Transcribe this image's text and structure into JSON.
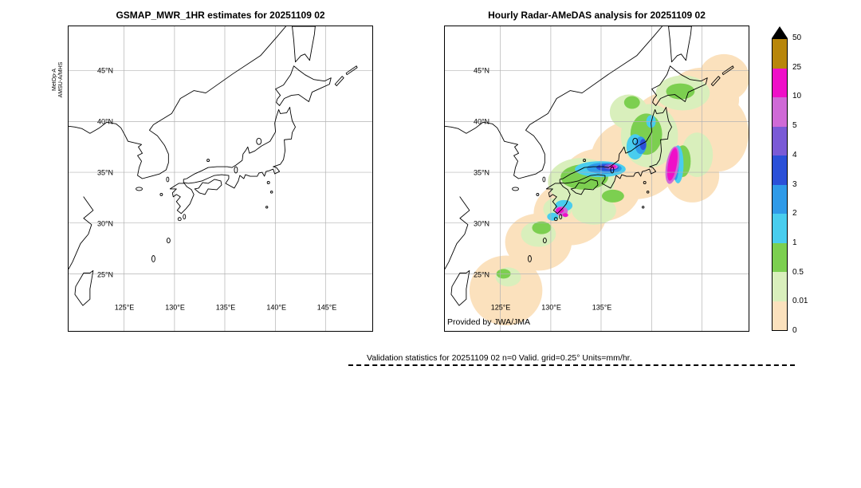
{
  "panels": [
    {
      "id": "gsmap",
      "title": "GSMAP_MWR_1HR estimates for 20251109 02",
      "side_label_lines": [
        "MetOp-A",
        "AMSU-A/MHS"
      ],
      "lat_ticks": [
        "45°N",
        "40°N",
        "35°N",
        "30°N",
        "25°N"
      ],
      "lon_ticks": [
        "125°E",
        "130°E",
        "135°E",
        "140°E",
        "145°E"
      ]
    },
    {
      "id": "radar",
      "title": "Hourly Radar-AMeDAS analysis for 20251109 02",
      "credit": "Provided by JWA/JMA",
      "lat_ticks": [
        "45°N",
        "40°N",
        "35°N",
        "30°N",
        "25°N"
      ],
      "lon_ticks": [
        "125°E",
        "130°E",
        "135°E"
      ]
    }
  ],
  "colorbar": {
    "tick_labels": [
      "50",
      "25",
      "10",
      "5",
      "4",
      "3",
      "2",
      "1",
      "0.5",
      "0.01",
      "0"
    ],
    "segment_colors_top_to_bottom": [
      "#b8860b",
      "#ef0fc8",
      "#cf6ad6",
      "#7a5ad6",
      "#2b50d8",
      "#2f9ae8",
      "#49cdee",
      "#7ccf50",
      "#d9efbc",
      "#fbe1bd"
    ],
    "over_max_marker_color": "#000000"
  },
  "footer": {
    "text": "Validation statistics for 20251109 02  n=0 Valid. grid=0.25° Units=mm/hr."
  },
  "chart_data": {
    "type": "heatmap",
    "subtype": "geographic-precipitation-comparison",
    "units": "mm/hr",
    "grid_resolution_deg": 0.25,
    "valid_datetime": "20251109 02",
    "n_valid": 0,
    "levels_mm_per_hr": [
      0,
      0.01,
      0.5,
      1,
      2,
      3,
      4,
      5,
      10,
      25,
      50
    ],
    "level_colors_low_to_high": [
      "#fbe1bd",
      "#d9efbc",
      "#7ccf50",
      "#49cdee",
      "#2f9ae8",
      "#2b50d8",
      "#7a5ad6",
      "#cf6ad6",
      "#ef0fc8",
      "#b8860b"
    ],
    "over_max_color": "#000000",
    "panels": [
      {
        "title": "GSMAP_MWR_1HR estimates for 20251109 02",
        "sensor": "MetOp-A AMSU-A/MHS",
        "lat_ticks_deg_N": [
          45,
          40,
          35,
          30,
          25
        ],
        "lon_ticks_deg_E": [
          125,
          130,
          135,
          140,
          145
        ],
        "shaded_data": "no precipitation shading visible (empty coastline map of Japan)"
      },
      {
        "title": "Hourly Radar-AMeDAS analysis for 20251109 02",
        "credit": "Provided by JWA/JMA",
        "lat_ticks_deg_N": [
          45,
          40,
          35,
          30,
          25
        ],
        "lon_ticks_deg_E": [
          125,
          130,
          135
        ],
        "shaded_data": "broad SW-NE precipitation band from the Ryukyu islands across Kyushu, Shikoku and Honshu to Hokkaido; widespread light rain (0.01-1 mm/hr), moderate rain (1-5 mm/hr) band over western/central Honshu and Tohoku, heavy cores (5-25 mm/hr) offshore east of Honshu near 141-142E / 34-37N and small cores south of Kyushu near 131E / 31N"
      }
    ]
  }
}
